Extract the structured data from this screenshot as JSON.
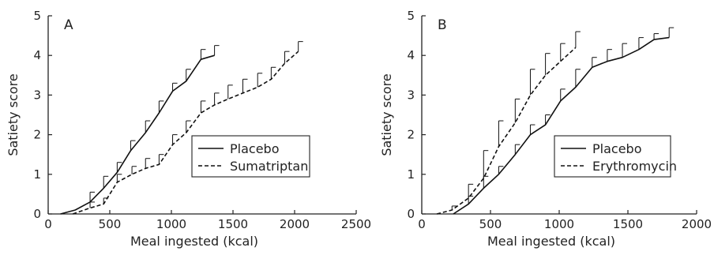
{
  "chart_data": [
    {
      "type": "line",
      "panel_label": "A",
      "xlabel": "Meal ingested (kcal)",
      "ylabel": "Satiety score",
      "xlim": [
        0,
        2500
      ],
      "ylim": [
        0,
        5
      ],
      "xticks": [
        0,
        500,
        1000,
        1500,
        2000,
        2500
      ],
      "yticks": [
        0,
        1,
        2,
        3,
        4,
        5
      ],
      "grid": false,
      "legend_position": "center-right",
      "error_bars": "upper-only",
      "series": [
        {
          "name": "Placebo",
          "line_style": "solid",
          "x": [
            100,
            220,
            340,
            450,
            560,
            670,
            790,
            900,
            1010,
            1120,
            1240,
            1350
          ],
          "y": [
            0.0,
            0.1,
            0.3,
            0.65,
            1.05,
            1.6,
            2.05,
            2.55,
            3.1,
            3.35,
            3.9,
            4.0
          ],
          "error_upper": [
            0.0,
            0.08,
            0.55,
            0.95,
            1.3,
            1.85,
            2.35,
            2.85,
            3.3,
            3.65,
            4.15,
            4.25
          ]
        },
        {
          "name": "Sumatriptan",
          "line_style": "dashed",
          "x": [
            200,
            340,
            450,
            560,
            680,
            790,
            900,
            1010,
            1120,
            1240,
            1350,
            1460,
            1580,
            1700,
            1810,
            1920,
            2030
          ],
          "y": [
            0.0,
            0.15,
            0.25,
            0.8,
            1.0,
            1.15,
            1.25,
            1.75,
            2.05,
            2.55,
            2.75,
            2.9,
            3.05,
            3.2,
            3.4,
            3.8,
            4.1
          ],
          "error_upper": [
            0.0,
            0.3,
            0.4,
            1.0,
            1.2,
            1.4,
            1.5,
            2.0,
            2.35,
            2.85,
            3.05,
            3.25,
            3.4,
            3.55,
            3.7,
            4.1,
            4.35
          ]
        }
      ]
    },
    {
      "type": "line",
      "panel_label": "B",
      "xlabel": "Meal ingested (kcal)",
      "ylabel": "Satiety score",
      "xlim": [
        0,
        2000
      ],
      "ylim": [
        0,
        5
      ],
      "xticks": [
        0,
        500,
        1000,
        1500,
        2000
      ],
      "yticks": [
        0,
        1,
        2,
        3,
        4,
        5
      ],
      "grid": false,
      "legend_position": "center-right",
      "error_bars": "upper-only",
      "series": [
        {
          "name": "Placebo",
          "line_style": "solid",
          "x": [
            230,
            340,
            450,
            560,
            680,
            790,
            900,
            1010,
            1120,
            1240,
            1350,
            1460,
            1580,
            1690,
            1800
          ],
          "y": [
            0.0,
            0.25,
            0.65,
            1.0,
            1.5,
            2.0,
            2.25,
            2.85,
            3.2,
            3.7,
            3.85,
            3.95,
            4.15,
            4.4,
            4.45
          ],
          "error_upper": [
            0.0,
            0.45,
            0.95,
            1.2,
            1.75,
            2.25,
            2.5,
            3.15,
            3.65,
            3.95,
            4.15,
            4.3,
            4.45,
            4.55,
            4.7
          ]
        },
        {
          "name": "Erythromycin",
          "line_style": "dashed",
          "x": [
            110,
            220,
            340,
            450,
            560,
            680,
            790,
            900,
            1010,
            1120
          ],
          "y": [
            0.0,
            0.1,
            0.4,
            0.9,
            1.7,
            2.3,
            3.0,
            3.5,
            3.85,
            4.2
          ],
          "error_upper": [
            0.0,
            0.2,
            0.75,
            1.6,
            2.35,
            2.9,
            3.65,
            4.05,
            4.3,
            4.6
          ]
        }
      ]
    }
  ]
}
